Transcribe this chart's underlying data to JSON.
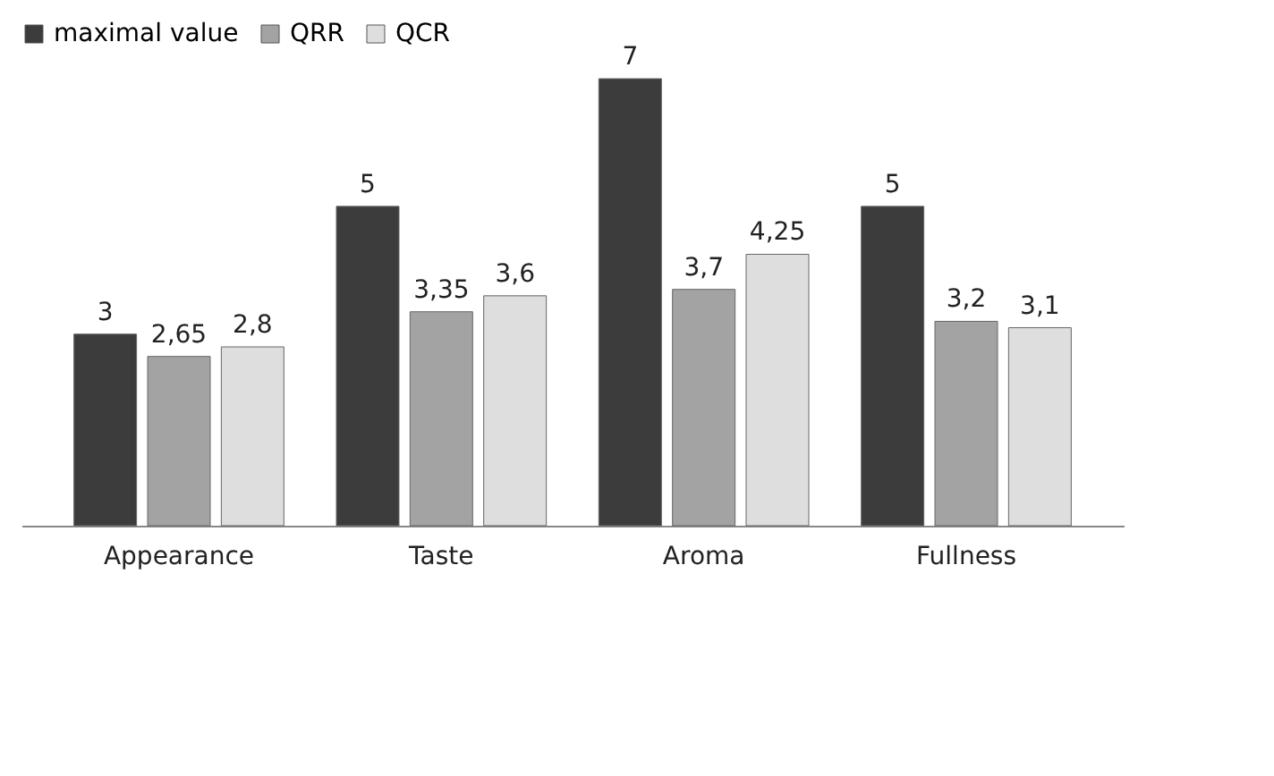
{
  "chart_data": {
    "type": "bar",
    "categories": [
      "Appearance",
      "Taste",
      "Aroma",
      "Fullness"
    ],
    "series": [
      {
        "name": "maximal value",
        "color": "#3c3c3c",
        "values": [
          3,
          5,
          7,
          5
        ],
        "value_labels": [
          "3",
          "5",
          "7",
          "5"
        ]
      },
      {
        "name": "QRR",
        "color": "#a3a3a3",
        "values": [
          2.65,
          3.35,
          3.7,
          3.2
        ],
        "value_labels": [
          "2,65",
          "3,35",
          "3,7",
          "3,2"
        ]
      },
      {
        "name": "QCR",
        "color": "#dedede",
        "values": [
          2.8,
          3.6,
          4.25,
          3.1
        ],
        "value_labels": [
          "2,8",
          "3,6",
          "4,25",
          "3,1"
        ]
      }
    ],
    "legend": "top",
    "grid": false
  }
}
